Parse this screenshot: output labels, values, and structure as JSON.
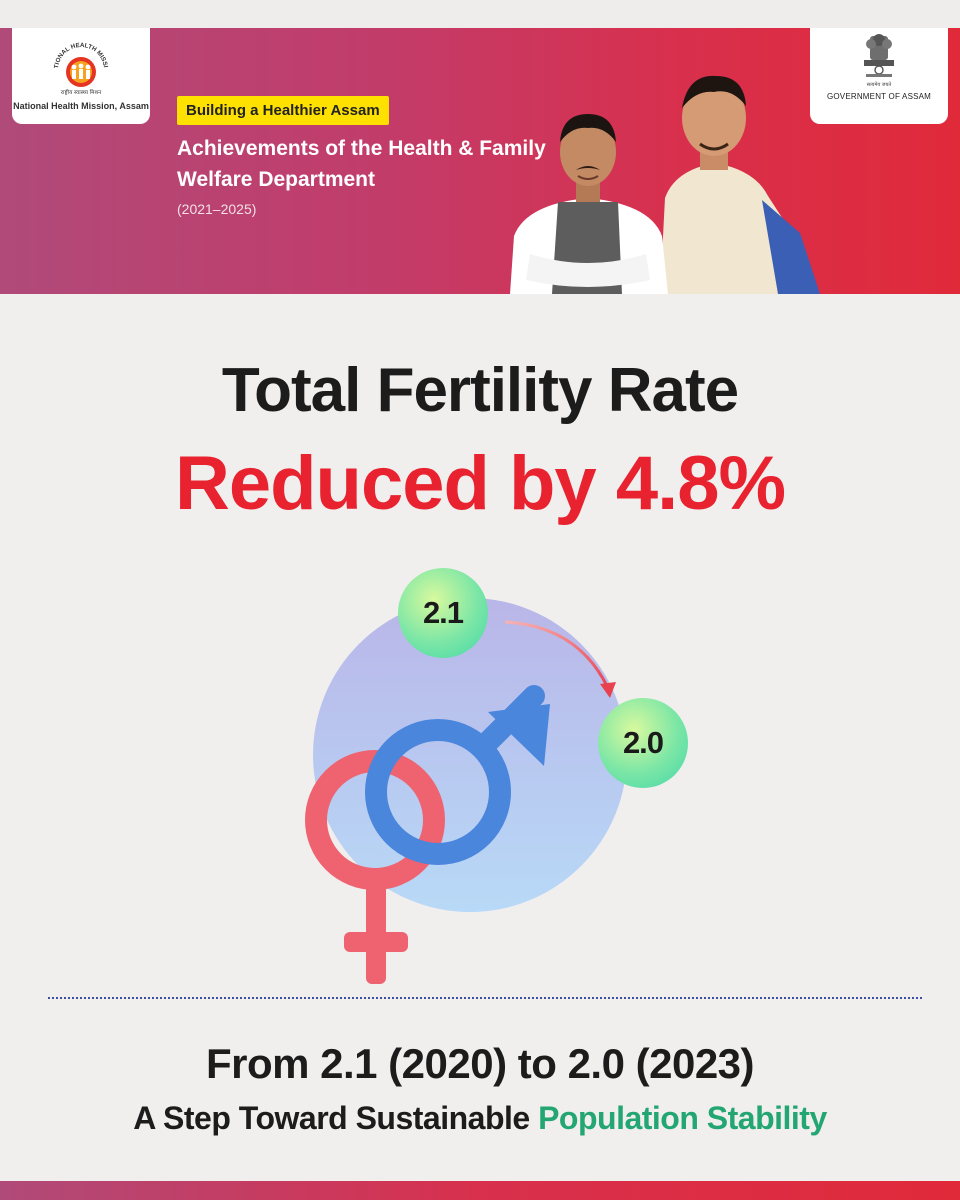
{
  "header": {
    "left_logo": {
      "arc_text": "NATIONAL HEALTH MISSION",
      "hindi_text": "राष्ट्रीय स्वास्थ्य मिशन",
      "caption": "National Health Mission, Assam"
    },
    "right_logo": {
      "motto": "सत्यमेव जयते",
      "caption": "GOVERNMENT OF ASSAM"
    },
    "tag": "Building a Healthier Assam",
    "title": "Achievements of the Health & Family Welfare Department",
    "years": "(2021–2025)"
  },
  "headline": {
    "line1": "Total Fertility Rate",
    "line2": "Reduced by 4.8%"
  },
  "illustration": {
    "from_value": "2.1",
    "to_value": "2.0",
    "icons": [
      "male-symbol-icon",
      "female-symbol-icon",
      "arrow-icon"
    ]
  },
  "footer": {
    "line1": "From 2.1 (2020) to 2.0 (2023)",
    "line2_prefix": "A Step Toward Sustainable ",
    "line2_accent": "Population Stability"
  },
  "colors": {
    "banner_start": "#b04a79",
    "banner_end": "#e02a3a",
    "headline_red": "#e8222f",
    "accent_green": "#23a672",
    "tag_yellow": "#ffe100"
  }
}
